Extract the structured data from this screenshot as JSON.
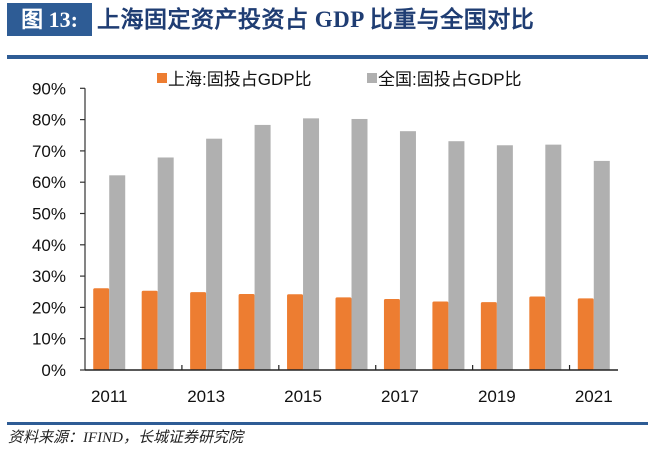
{
  "figure": {
    "label": "图 13:",
    "title": "上海固定资产投资占 GDP 比重与全国对比",
    "source": "资料来源：IFIND，长城证券研究院"
  },
  "colors": {
    "label_bg": "#2e5c95",
    "title_text": "#1f3d73",
    "shanghai": "#ed7d31",
    "national": "#b0b0b0"
  },
  "chart_data": {
    "type": "bar",
    "title": "上海固定资产投资占 GDP 比重与全国对比",
    "xlabel": "",
    "ylabel": "",
    "categories": [
      "2011",
      "2012",
      "2013",
      "2014",
      "2015",
      "2016",
      "2017",
      "2018",
      "2019",
      "2020",
      "2021"
    ],
    "x_tick_labels": [
      "2011",
      "",
      "2013",
      "",
      "2015",
      "",
      "2017",
      "",
      "2019",
      "",
      "2021"
    ],
    "series": [
      {
        "name": "上海:固投占GDP比",
        "color": "#ed7d31",
        "values": [
          26.1,
          25.3,
          24.9,
          24.3,
          24.2,
          23.2,
          22.7,
          21.9,
          21.7,
          23.5,
          22.9
        ]
      },
      {
        "name": "全国:固投占GDP比",
        "color": "#b0b0b0",
        "values": [
          62.2,
          67.9,
          73.9,
          78.3,
          80.4,
          80.2,
          76.3,
          73.1,
          71.8,
          72.0,
          66.8
        ]
      }
    ],
    "ylim": [
      0,
      90
    ],
    "y_ticks": [
      "0%",
      "10%",
      "20%",
      "30%",
      "40%",
      "50%",
      "60%",
      "70%",
      "80%",
      "90%"
    ],
    "y_tick_values": [
      0,
      10,
      20,
      30,
      40,
      50,
      60,
      70,
      80,
      90
    ],
    "grid": false,
    "legend_position": "top"
  }
}
